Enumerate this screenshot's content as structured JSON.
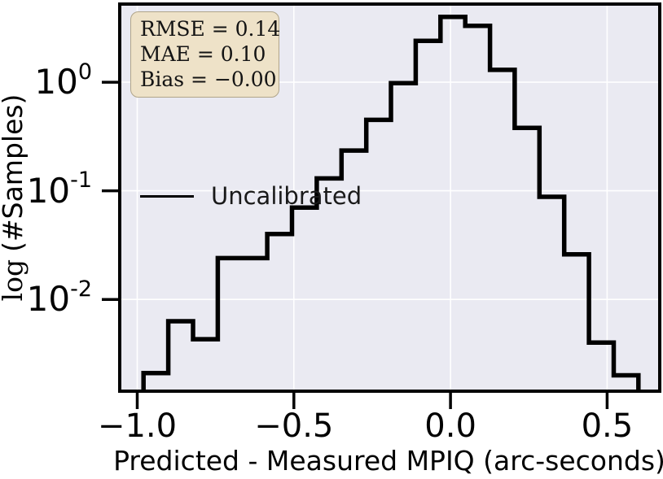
{
  "colors": {
    "plot_bg": "#eaeaf2",
    "grid": "#ffffff",
    "spine": "#000000",
    "hist_line": "#000000",
    "outer_bg": "#ffffff",
    "stats_bg": "#eee2c8",
    "stats_border": "#b0a58a"
  },
  "chart_data": {
    "type": "bar",
    "subtype": "step-histogram",
    "title": "",
    "xlabel": "Predicted - Measured MPIQ (arc-seconds)",
    "ylabel": "log (#Samples)",
    "ylabel_parts": {
      "math": "log",
      "rest": "(#Samples)"
    },
    "y_scale": "log",
    "grid": true,
    "xlim": [
      -1.056,
      0.668
    ],
    "ylim": [
      0.00143,
      5.24
    ],
    "x_ticks": [
      {
        "v": -1.0,
        "label": "−1.0"
      },
      {
        "v": -0.5,
        "label": "−0.5"
      },
      {
        "v": 0.0,
        "label": "0.0"
      },
      {
        "v": 0.5,
        "label": "0.5"
      }
    ],
    "y_ticks": [
      {
        "v": 1,
        "base": "10",
        "exp": "0"
      },
      {
        "v": 0.1,
        "base": "10",
        "exp": "-1"
      },
      {
        "v": 0.01,
        "base": "10",
        "exp": "-2"
      }
    ],
    "legend": {
      "position": "center-left",
      "frame": false,
      "items": [
        {
          "label": "Uncalibrated",
          "color": "#000000"
        }
      ]
    },
    "series": [
      {
        "name": "Uncalibrated",
        "color": "#000000",
        "bin_edges": [
          -0.98,
          -0.901,
          -0.822,
          -0.743,
          -0.664,
          -0.585,
          -0.506,
          -0.427,
          -0.348,
          -0.269,
          -0.19,
          -0.111,
          -0.032,
          0.047,
          0.126,
          0.205,
          0.284,
          0.363,
          0.442,
          0.521,
          0.6
        ],
        "values": [
          0.0021,
          0.0063,
          0.0043,
          0.024,
          0.024,
          0.04,
          0.07,
          0.13,
          0.235,
          0.45,
          0.98,
          2.4,
          4.0,
          3.3,
          1.3,
          0.38,
          0.088,
          0.026,
          0.004,
          0.002
        ]
      }
    ],
    "annotations": {
      "stats_lines": [
        "RMSE = 0.14",
        "MAE = 0.10",
        "Bias = −0.00"
      ]
    }
  }
}
